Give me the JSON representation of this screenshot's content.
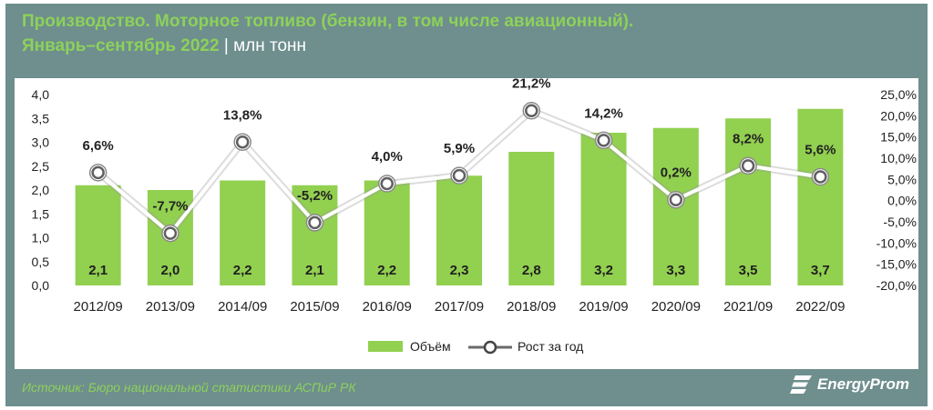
{
  "header": {
    "title": "Производство. Моторное топливо (бензин, в том числе авиационный).",
    "period": "Январь–сентябрь 2022",
    "separator": "|",
    "unit": "млн тонн"
  },
  "chart_data": {
    "type": "bar",
    "categories": [
      "2012/09",
      "2013/09",
      "2014/09",
      "2015/09",
      "2016/09",
      "2017/09",
      "2018/09",
      "2019/09",
      "2020/09",
      "2021/09",
      "2022/09"
    ],
    "series": [
      {
        "name": "Объём",
        "type": "bar",
        "axis": "left",
        "color": "#92d050",
        "values": [
          2.1,
          2.0,
          2.2,
          2.1,
          2.2,
          2.3,
          2.8,
          3.2,
          3.3,
          3.5,
          3.7
        ],
        "labels": [
          "2,1",
          "2,0",
          "2,2",
          "2,1",
          "2,2",
          "2,3",
          "2,8",
          "3,2",
          "3,3",
          "3,5",
          "3,7"
        ]
      },
      {
        "name": "Рост за год",
        "type": "line",
        "axis": "right",
        "color": "#ffffff",
        "values": [
          6.6,
          -7.7,
          13.8,
          -5.2,
          4.0,
          5.9,
          21.2,
          14.2,
          0.2,
          8.2,
          5.6
        ],
        "labels": [
          "6,6%",
          "-7,7%",
          "13,8%",
          "-5,2%",
          "4,0%",
          "5,9%",
          "21,2%",
          "14,2%",
          "0,2%",
          "8,2%",
          "5,6%"
        ]
      }
    ],
    "ylim_left": [
      0,
      4
    ],
    "yticks_left": [
      "0,0",
      "0,5",
      "1,0",
      "1,5",
      "2,0",
      "2,5",
      "3,0",
      "3,5",
      "4,0"
    ],
    "ylim_right": [
      -20,
      25
    ],
    "yticks_right": [
      "-20,0%",
      "-15,0%",
      "-10,0%",
      "-5,0%",
      "0,0%",
      "5,0%",
      "10,0%",
      "15,0%",
      "20,0%",
      "25,0%"
    ],
    "grid": false,
    "legend_position": "bottom"
  },
  "footer": {
    "source": "Источник: Бюро национальной статистики АСПиР РК",
    "brand": "EnergyProm"
  }
}
